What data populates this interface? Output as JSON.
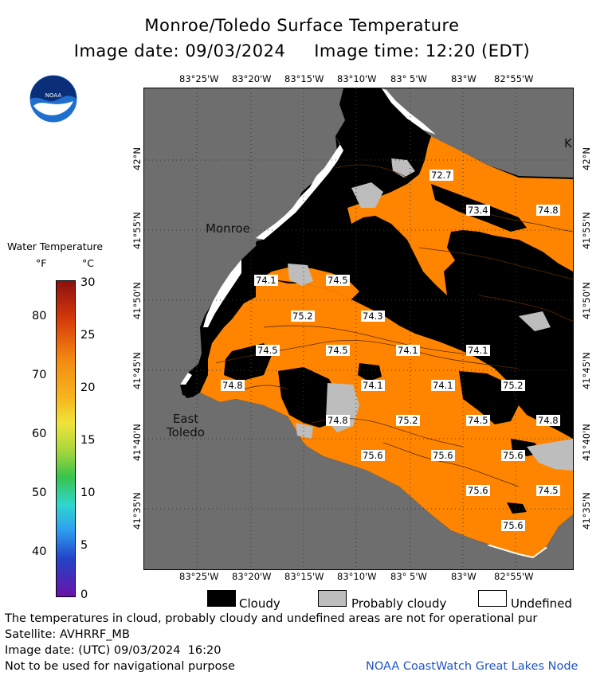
{
  "title": "Monroe/Toledo Surface Temperature",
  "subtitle": "Image date: 09/03/2024     Image time: 12:20 (EDT)",
  "logo_text": "NOAA",
  "top_longitudes": [
    "83°25'W",
    "83°20'W",
    "83°15'W",
    "83°10'W",
    "83° 5'W",
    "83°W",
    "82°55'W"
  ],
  "bottom_longitudes": [
    "83°25'W",
    "83°20'W",
    "83°15'W",
    "83°10'W",
    "83° 5'W",
    "83°W",
    "82°55'W"
  ],
  "left_latitudes": [
    "42°N",
    "41°55'N",
    "41°50'N",
    "41°45'N",
    "41°40'N",
    "41°35'N"
  ],
  "right_latitudes": [
    "42°N",
    "41°55'N",
    "41°50'N",
    "41°45'N",
    "41°40'N",
    "41°35'N"
  ],
  "places": {
    "monroe": "Monroe",
    "east_toledo_1": "East",
    "east_toledo_2": "Toledo",
    "k": "K"
  },
  "temps": [
    "72.7",
    "73.4",
    "74.8",
    "74.1",
    "74.5",
    "75.2",
    "74.3",
    "74.5",
    "74.5",
    "74.1",
    "74.1",
    "74.8",
    "74.1",
    "74.1",
    "75.2",
    "74.8",
    "75.2",
    "74.5",
    "74.8",
    "75.6",
    "75.6",
    "75.6",
    "75.6",
    "74.5",
    "75.6"
  ],
  "legend_scale": {
    "title": "Water Temperature",
    "unit_f": "°F",
    "unit_c": "°C",
    "f_ticks": [
      "80",
      "70",
      "60",
      "50",
      "40"
    ],
    "c_ticks": [
      "30",
      "25",
      "20",
      "15",
      "10",
      "5",
      "0"
    ]
  },
  "cloud_legend": {
    "cloudy": "Cloudy",
    "probably_cloudy": "Probably cloudy",
    "undefined": "Undefined"
  },
  "footer": {
    "line1": "The temperatures in cloud, probably cloudy and undefined areas are not for operational pur",
    "line2": "Satellite: AVHRRF_MB",
    "line3": "Image date: (UTC) 09/03/2024  16:20",
    "line4": "Not to be used for navigational purpose",
    "credit": "NOAA CoastWatch Great Lakes Node"
  },
  "colors": {
    "land": "#6e6e6e",
    "water": "#ff8500",
    "cloudy": "#000000",
    "probably_cloudy": "#bdbdbd",
    "undefined": "#ffffff",
    "credit": "#2255c4"
  }
}
